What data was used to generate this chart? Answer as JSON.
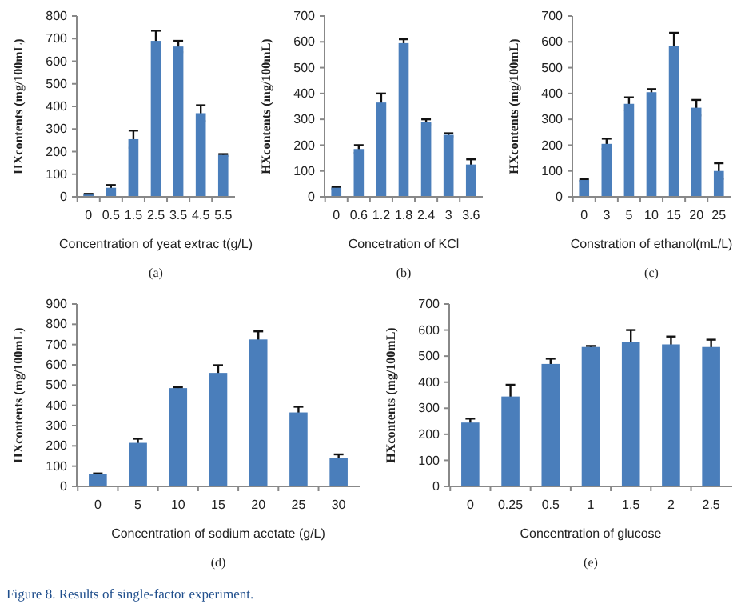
{
  "chart_data": [
    {
      "type": "bar",
      "xlabel": "Concentration of  yeat extrac t(g/L)",
      "ylabel": "HXcontents (mg/100mL)",
      "categories": [
        "0",
        "0.5",
        "1.5",
        "2.5",
        "3.5",
        "4.5",
        "5.5"
      ],
      "values": [
        10,
        40,
        255,
        690,
        665,
        370,
        185
      ],
      "errors": [
        3,
        12,
        38,
        45,
        25,
        35,
        4
      ],
      "color": "#4a7ebb",
      "ylim": [
        0,
        800
      ],
      "yticks": [
        0,
        100,
        200,
        300,
        400,
        500,
        600,
        700,
        800
      ],
      "annotations": [
        "(a)"
      ]
    },
    {
      "type": "bar",
      "xlabel": "Concetration of KCl",
      "ylabel": "HXcontents (mg/100mL)",
      "categories": [
        "0",
        "0.6",
        "1.2",
        "1.8",
        "2.4",
        "3",
        "3.6"
      ],
      "values": [
        35,
        185,
        365,
        595,
        290,
        240,
        125
      ],
      "errors": [
        3,
        15,
        35,
        15,
        10,
        6,
        20
      ],
      "color": "#4a7ebb",
      "ylim": [
        0,
        700
      ],
      "yticks": [
        0,
        100,
        200,
        300,
        400,
        500,
        600,
        700
      ],
      "annotations": [
        "(b)"
      ]
    },
    {
      "type": "bar",
      "xlabel": "Constration of ethanol(mL/L)",
      "ylabel": "HXcontents (mg/100mL)",
      "categories": [
        "0",
        "3",
        "5",
        "10",
        "15",
        "20",
        "25"
      ],
      "values": [
        65,
        205,
        360,
        405,
        585,
        345,
        100
      ],
      "errors": [
        3,
        20,
        25,
        12,
        50,
        30,
        30
      ],
      "color": "#4a7ebb",
      "ylim": [
        0,
        700
      ],
      "yticks": [
        0,
        100,
        200,
        300,
        400,
        500,
        600,
        700
      ],
      "annotations": [
        "(c)"
      ]
    },
    {
      "type": "bar",
      "xlabel": "Concentration of sodium acetate (g/L)",
      "ylabel": "HXcontents (mg/100mL)",
      "categories": [
        "0",
        "5",
        "10",
        "15",
        "20",
        "25",
        "30"
      ],
      "values": [
        60,
        215,
        485,
        560,
        725,
        365,
        140
      ],
      "errors": [
        4,
        20,
        5,
        38,
        40,
        28,
        18
      ],
      "color": "#4a7ebb",
      "ylim": [
        0,
        900
      ],
      "yticks": [
        0,
        100,
        200,
        300,
        400,
        500,
        600,
        700,
        800,
        900
      ],
      "annotations": [
        "(d)",
        "Figure 8. Results of single-factor experiment."
      ]
    },
    {
      "type": "bar",
      "xlabel": "Concentration of glucose",
      "ylabel": "HXcontents (mg/100mL)",
      "categories": [
        "0",
        "0.25",
        "0.5",
        "1",
        "1.5",
        "2",
        "2.5"
      ],
      "values": [
        245,
        345,
        470,
        535,
        555,
        545,
        535
      ],
      "errors": [
        15,
        45,
        20,
        4,
        45,
        30,
        28
      ],
      "color": "#4a7ebb",
      "ylim": [
        0,
        700
      ],
      "yticks": [
        0,
        100,
        200,
        300,
        400,
        500,
        600,
        700
      ],
      "annotations": [
        "(e)"
      ]
    }
  ]
}
